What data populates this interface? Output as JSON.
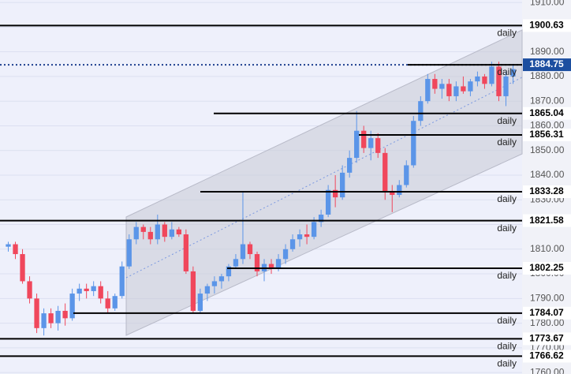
{
  "chart_data": {
    "type": "candlestick",
    "ylim": [
      1759.4,
      1911
    ],
    "yticks": [
      {
        "value": 1910,
        "label": "1910.00"
      },
      {
        "value": 1900,
        "label": "1900.00"
      },
      {
        "value": 1890,
        "label": "1890.00"
      },
      {
        "value": 1880,
        "label": "1880.00"
      },
      {
        "value": 1870,
        "label": "1870.00"
      },
      {
        "value": 1860,
        "label": "1860.00"
      },
      {
        "value": 1850,
        "label": "1850.00"
      },
      {
        "value": 1840,
        "label": "1840.00"
      },
      {
        "value": 1830,
        "label": "1830.00"
      },
      {
        "value": 1820,
        "label": "1820.00"
      },
      {
        "value": 1810,
        "label": "1810.00"
      },
      {
        "value": 1800,
        "label": "1800.00"
      },
      {
        "value": 1790,
        "label": "1790.00"
      },
      {
        "value": 1780,
        "label": "1780.00"
      },
      {
        "value": 1770,
        "label": "1770.00"
      },
      {
        "value": 1760,
        "label": "1760.00"
      }
    ],
    "grid": true,
    "up_color": "#5b95e8",
    "down_color": "#f0475c",
    "open": [
      1811,
      1812,
      1808,
      1797,
      1790,
      1778,
      1784,
      1780,
      1785,
      1782,
      1792,
      1794,
      1793,
      1795,
      1790,
      1786,
      1791,
      1803,
      1814,
      1819,
      1817,
      1814,
      1820,
      1815,
      1818,
      1816,
      1801,
      1785,
      1792,
      1795,
      1797,
      1799,
      1803,
      1806,
      1812,
      1808,
      1801,
      1804,
      1802,
      1806,
      1810,
      1814,
      1816,
      1815,
      1821,
      1824,
      1834,
      1831,
      1841,
      1847,
      1858,
      1851,
      1855,
      1849,
      1833,
      1832,
      1836,
      1844,
      1862,
      1870,
      1879,
      1875,
      1877,
      1872,
      1876,
      1874,
      1878,
      1880,
      1877,
      1884,
      1872,
      1880
    ],
    "high": [
      1813,
      1813,
      1810,
      1799,
      1792,
      1786,
      1786,
      1787,
      1788,
      1794,
      1796,
      1796,
      1797,
      1797,
      1793,
      1792,
      1805,
      1816,
      1821,
      1820,
      1819,
      1824,
      1821,
      1821,
      1819,
      1818,
      1803,
      1794,
      1796,
      1799,
      1800,
      1804,
      1808,
      1833,
      1813,
      1809,
      1806,
      1806,
      1808,
      1812,
      1816,
      1818,
      1820,
      1823,
      1826,
      1836,
      1840,
      1844,
      1850,
      1866,
      1860,
      1858,
      1857,
      1851,
      1836,
      1838,
      1846,
      1864,
      1872,
      1881,
      1881,
      1879,
      1879,
      1878,
      1880,
      1879,
      1882,
      1881,
      1886,
      1886,
      1882,
      1885
    ],
    "low": [
      1809,
      1806,
      1796,
      1788,
      1776,
      1775,
      1778,
      1777,
      1779,
      1781,
      1789,
      1790,
      1791,
      1788,
      1784,
      1785,
      1790,
      1802,
      1812,
      1814,
      1812,
      1812,
      1813,
      1814,
      1815,
      1800,
      1784,
      1784,
      1789,
      1792,
      1794,
      1797,
      1802,
      1804,
      1806,
      1799,
      1797,
      1800,
      1801,
      1804,
      1809,
      1811,
      1812,
      1814,
      1819,
      1823,
      1827,
      1830,
      1839,
      1845,
      1849,
      1846,
      1847,
      1830,
      1825,
      1831,
      1835,
      1843,
      1860,
      1869,
      1873,
      1871,
      1870,
      1870,
      1873,
      1872,
      1876,
      1875,
      1876,
      1870,
      1868,
      1877
    ],
    "close": [
      1812,
      1808,
      1797,
      1790,
      1778,
      1784,
      1780,
      1785,
      1782,
      1792,
      1794,
      1793,
      1795,
      1790,
      1786,
      1791,
      1803,
      1814,
      1819,
      1817,
      1814,
      1820,
      1815,
      1818,
      1816,
      1801,
      1785,
      1792,
      1795,
      1797,
      1799,
      1803,
      1806,
      1812,
      1808,
      1801,
      1804,
      1802,
      1806,
      1810,
      1814,
      1816,
      1815,
      1821,
      1824,
      1834,
      1831,
      1841,
      1847,
      1858,
      1851,
      1855,
      1849,
      1833,
      1832,
      1836,
      1844,
      1862,
      1870,
      1879,
      1875,
      1877,
      1872,
      1876,
      1874,
      1878,
      1880,
      1877,
      1884,
      1872,
      1880,
      1883
    ],
    "levels": [
      {
        "value": 1900.63,
        "note": "daily"
      },
      {
        "value": 1884.75,
        "note": "daily",
        "highlight": true
      },
      {
        "value": 1865.04,
        "note": "daily"
      },
      {
        "value": 1856.31,
        "note": "daily"
      },
      {
        "value": 1833.28,
        "note": "daily"
      },
      {
        "value": 1821.58,
        "note": "daily"
      },
      {
        "value": 1802.25,
        "note": "daily"
      },
      {
        "value": 1784.07,
        "note": "daily"
      },
      {
        "value": 1773.67,
        "note": "daily"
      },
      {
        "value": 1766.62,
        "note": "daily"
      }
    ]
  }
}
